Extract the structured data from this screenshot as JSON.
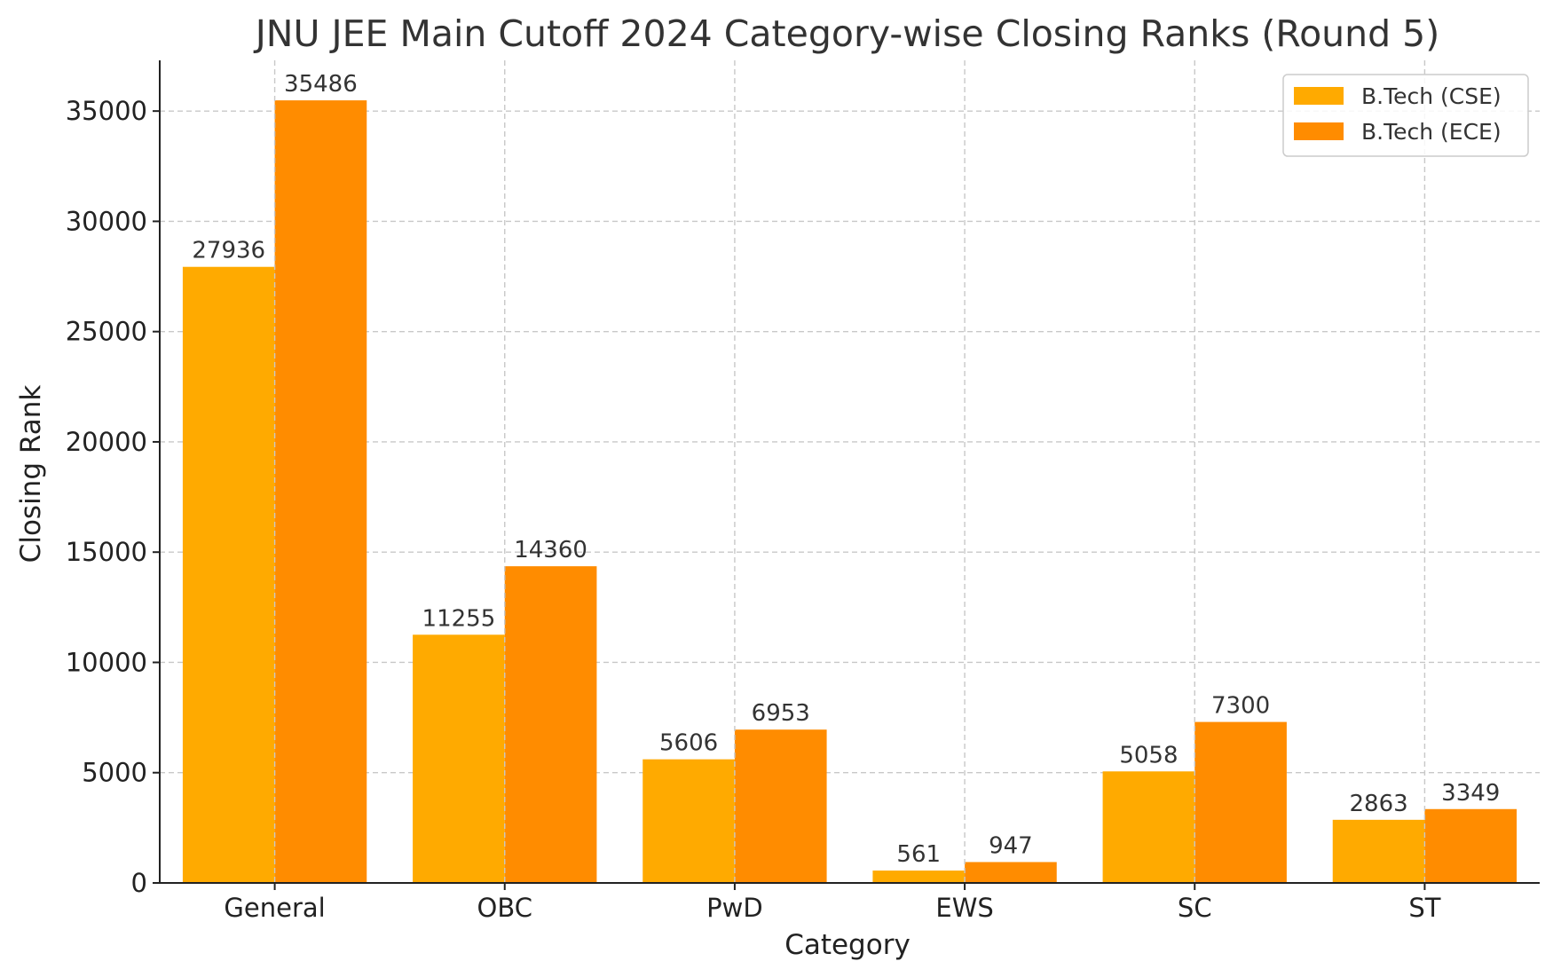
{
  "chart_data": {
    "type": "bar",
    "title": "JNU JEE Main Cutoff 2024 Category-wise Closing Ranks (Round 5)",
    "xlabel": "Category",
    "ylabel": "Closing Rank",
    "categories": [
      "General",
      "OBC",
      "PwD",
      "EWS",
      "SC",
      "ST"
    ],
    "series": [
      {
        "name": "B.Tech (CSE)",
        "color": "#FFAA00",
        "values": [
          27936,
          11255,
          5606,
          561,
          5058,
          2863
        ]
      },
      {
        "name": "B.Tech (ECE)",
        "color": "#FF8C00",
        "values": [
          35486,
          14360,
          6953,
          947,
          7300,
          3349
        ]
      }
    ],
    "ylim": [
      0,
      37300
    ],
    "yticks": [
      0,
      5000,
      10000,
      15000,
      20000,
      25000,
      30000,
      35000
    ],
    "grid": true,
    "legend": "top-right"
  }
}
